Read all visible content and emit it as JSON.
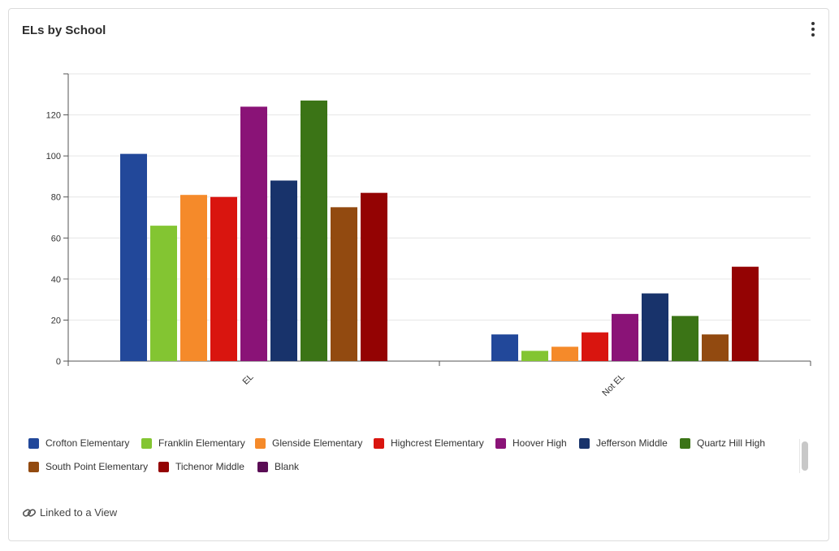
{
  "card": {
    "title": "ELs by School",
    "linked_label": "Linked to a View"
  },
  "icons": {
    "menu": "vertical-ellipsis-icon",
    "link": "link-chain-icon"
  },
  "chart_data": {
    "type": "bar",
    "title": "ELs by School",
    "categories": [
      "EL",
      "Not EL"
    ],
    "xlabel": "",
    "ylabel": "",
    "ylim": [
      0,
      140
    ],
    "yticks": [
      0,
      20,
      40,
      60,
      80,
      100,
      120
    ],
    "grid": true,
    "legend_position": "bottom",
    "series": [
      {
        "name": "Crofton Elementary",
        "color": "#22489a",
        "values": [
          101,
          13
        ]
      },
      {
        "name": "Franklin Elementary",
        "color": "#83c532",
        "values": [
          66,
          5
        ]
      },
      {
        "name": "Glenside Elementary",
        "color": "#f58a2a",
        "values": [
          81,
          7
        ]
      },
      {
        "name": "Highcrest Elementary",
        "color": "#d9150f",
        "values": [
          80,
          14
        ]
      },
      {
        "name": "Hoover High",
        "color": "#8a1377",
        "values": [
          124,
          23
        ]
      },
      {
        "name": "Jefferson Middle",
        "color": "#18336b",
        "values": [
          88,
          33
        ]
      },
      {
        "name": "Quartz Hill High",
        "color": "#3b7416",
        "values": [
          127,
          22
        ]
      },
      {
        "name": "South Point Elementary",
        "color": "#924a10",
        "values": [
          75,
          13
        ]
      },
      {
        "name": "Tichenor Middle",
        "color": "#940303",
        "values": [
          82,
          46
        ]
      },
      {
        "name": "Blank",
        "color": "#5a0d55",
        "values": [
          0,
          0
        ]
      }
    ]
  }
}
